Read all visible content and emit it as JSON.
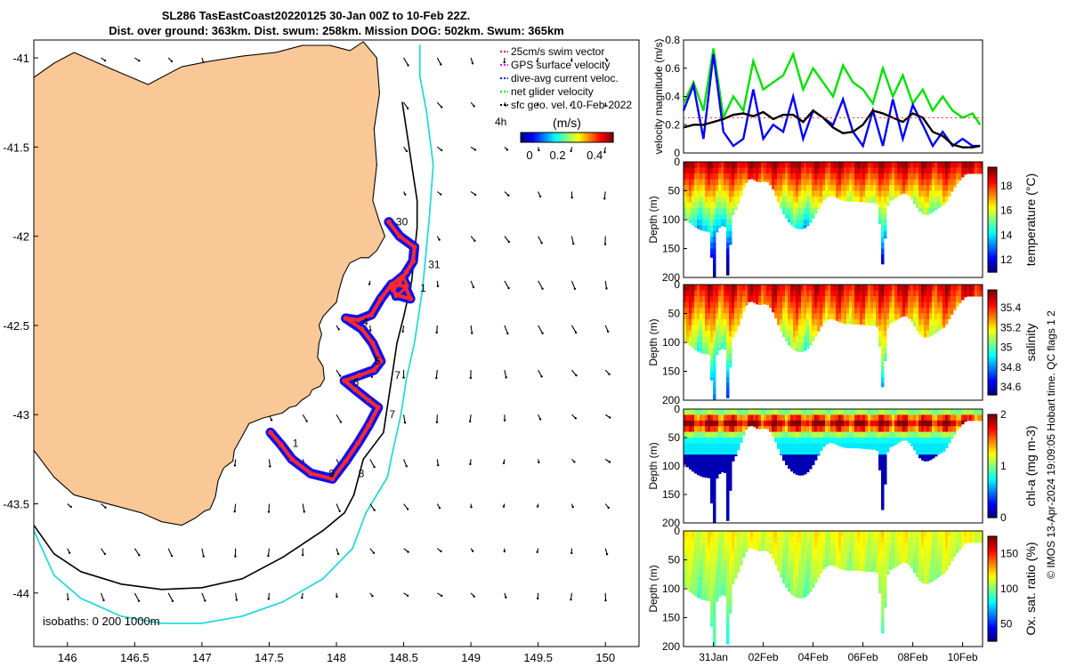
{
  "title": {
    "line1": "SL286 TasEastCoast20220125 30-Jan 00Z to 10-Feb 22Z.",
    "line2": "Dist. over ground: 363km. Dist. swum: 258km. Mission DOG: 502km. Swum: 365km"
  },
  "credit": "© IMOS 13-Apr-2024 19:09:05 Hobart time. QC flags 1  2",
  "colors": {
    "land": "#F9C896",
    "track": "#ff2a2a",
    "dive_avg": "#1010ee",
    "net": "#1ee51e",
    "geo": "#000000",
    "isobath200": "#000000",
    "isobath1000": "#2ad8d8"
  },
  "chart_data": [
    {
      "type": "map",
      "name": "track-map",
      "xlim": [
        145.75,
        150.25
      ],
      "ylim": [
        -44.3,
        -40.9
      ],
      "xticks": [
        146,
        146.5,
        147,
        147.5,
        148,
        148.5,
        149,
        149.5,
        150
      ],
      "xtick_labels": [
        "146",
        "146.5",
        "147",
        "147.5",
        "148",
        "148.5",
        "149",
        "149.5",
        "150"
      ],
      "yticks": [
        -41,
        -41.5,
        -42,
        -42.5,
        -43,
        -43.5,
        -44
      ],
      "ytick_labels": [
        "-41",
        "-41.5",
        "-42",
        "-42.5",
        "-43",
        "-43.5",
        "-44"
      ],
      "legend": {
        "placement": "top-right",
        "entries": [
          {
            "label": "25cm/s swim vector",
            "color": "#ff0000"
          },
          {
            "label": "GPS surface velocity",
            "color": "#ff00ff"
          },
          {
            "label": "dive-avg current veloc.",
            "color": "#0000ff"
          },
          {
            "label": "net glider velocity",
            "color": "#00e000"
          },
          {
            "label": "sfc geo. vel. 10-Feb-2022",
            "color": "#000000"
          }
        ]
      },
      "colorbar": {
        "label": "(m/s)",
        "note": "4h",
        "ticks": [
          0,
          0.2,
          0.4
        ],
        "tick_labels": [
          "0",
          "0.2",
          "0.4"
        ]
      },
      "isobath_label": "isobaths: 0   200  1000m",
      "track_labels": [
        {
          "text": "30",
          "lon": 148.39,
          "lat": -41.92
        },
        {
          "text": "31",
          "lon": 148.63,
          "lat": -42.16
        },
        {
          "text": "1",
          "lon": 148.57,
          "lat": -42.29
        },
        {
          "text": "4",
          "lon": 148.14,
          "lat": -42.48
        },
        {
          "text": "5",
          "lon": 148.23,
          "lat": -42.7
        },
        {
          "text": "6",
          "lon": 148.07,
          "lat": -42.82
        },
        {
          "text": "7",
          "lon": 148.38,
          "lat": -42.78
        },
        {
          "text": "7",
          "lon": 148.34,
          "lat": -43.0
        },
        {
          "text": "1",
          "lon": 147.62,
          "lat": -43.16
        },
        {
          "text": "9",
          "lon": 147.89,
          "lat": -43.33
        },
        {
          "text": "8",
          "lon": 148.11,
          "lat": -43.33
        }
      ],
      "track": [
        [
          148.39,
          -41.92
        ],
        [
          148.47,
          -42.0
        ],
        [
          148.58,
          -42.06
        ],
        [
          148.57,
          -42.14
        ],
        [
          148.52,
          -42.2
        ],
        [
          148.47,
          -42.26
        ],
        [
          148.42,
          -42.3
        ],
        [
          148.45,
          -42.33
        ],
        [
          148.55,
          -42.35
        ],
        [
          148.51,
          -42.28
        ],
        [
          148.41,
          -42.27
        ],
        [
          148.33,
          -42.35
        ],
        [
          148.26,
          -42.44
        ],
        [
          148.16,
          -42.47
        ],
        [
          148.07,
          -42.46
        ],
        [
          148.19,
          -42.52
        ],
        [
          148.27,
          -42.6
        ],
        [
          148.33,
          -42.7
        ],
        [
          148.28,
          -42.75
        ],
        [
          148.17,
          -42.78
        ],
        [
          148.06,
          -42.81
        ],
        [
          148.14,
          -42.86
        ],
        [
          148.24,
          -42.92
        ],
        [
          148.31,
          -42.96
        ],
        [
          148.24,
          -43.06
        ],
        [
          148.16,
          -43.16
        ],
        [
          148.07,
          -43.26
        ],
        [
          147.97,
          -43.36
        ],
        [
          147.81,
          -43.33
        ],
        [
          147.67,
          -43.25
        ],
        [
          147.59,
          -43.17
        ],
        [
          147.51,
          -43.1
        ]
      ],
      "track_extras": [
        [
          [
            148.41,
            -42.27
          ],
          [
            148.49,
            -42.22
          ],
          [
            148.53,
            -42.28
          ],
          [
            148.44,
            -42.34
          ],
          [
            148.41,
            -42.27
          ]
        ]
      ],
      "coast": [
        [
          145.75,
          -41.11
        ],
        [
          145.9,
          -41.03
        ],
        [
          146.05,
          -40.97
        ],
        [
          146.35,
          -41.07
        ],
        [
          146.6,
          -41.15
        ],
        [
          146.85,
          -41.05
        ],
        [
          147.05,
          -41.02
        ],
        [
          147.3,
          -40.99
        ],
        [
          147.55,
          -40.97
        ],
        [
          147.75,
          -40.93
        ],
        [
          147.95,
          -40.93
        ],
        [
          148.1,
          -40.96
        ],
        [
          148.2,
          -40.91
        ],
        [
          148.3,
          -41.0
        ],
        [
          148.32,
          -41.2
        ],
        [
          148.28,
          -41.4
        ],
        [
          148.3,
          -41.6
        ],
        [
          148.27,
          -41.8
        ],
        [
          148.32,
          -41.92
        ],
        [
          148.36,
          -42.0
        ],
        [
          148.3,
          -42.08
        ],
        [
          148.24,
          -42.12
        ],
        [
          148.18,
          -42.12
        ],
        [
          148.1,
          -42.15
        ],
        [
          148.05,
          -42.22
        ],
        [
          148.02,
          -42.3
        ],
        [
          148.0,
          -42.37
        ],
        [
          147.96,
          -42.4
        ],
        [
          147.9,
          -42.45
        ],
        [
          147.87,
          -42.5
        ],
        [
          147.89,
          -42.55
        ],
        [
          147.87,
          -42.6
        ],
        [
          147.86,
          -42.68
        ],
        [
          147.9,
          -42.73
        ],
        [
          147.91,
          -42.8
        ],
        [
          147.88,
          -42.84
        ],
        [
          147.82,
          -42.86
        ],
        [
          147.8,
          -42.89
        ],
        [
          147.74,
          -42.92
        ],
        [
          147.7,
          -42.95
        ],
        [
          147.65,
          -42.96
        ],
        [
          147.6,
          -42.99
        ],
        [
          147.45,
          -43.02
        ],
        [
          147.35,
          -43.05
        ],
        [
          147.3,
          -43.12
        ],
        [
          147.24,
          -43.2
        ],
        [
          147.23,
          -43.26
        ],
        [
          147.16,
          -43.3
        ],
        [
          147.12,
          -43.37
        ],
        [
          147.1,
          -43.46
        ],
        [
          147.06,
          -43.53
        ],
        [
          147.02,
          -43.54
        ],
        [
          146.95,
          -43.58
        ],
        [
          146.85,
          -43.62
        ],
        [
          146.7,
          -43.6
        ],
        [
          146.55,
          -43.55
        ],
        [
          146.4,
          -43.52
        ],
        [
          146.25,
          -43.49
        ],
        [
          146.05,
          -43.45
        ],
        [
          145.9,
          -43.35
        ],
        [
          145.75,
          -43.2
        ]
      ],
      "isobath200": [
        [
          148.49,
          -41.25
        ],
        [
          148.53,
          -41.45
        ],
        [
          148.57,
          -41.65
        ],
        [
          148.6,
          -41.8
        ],
        [
          148.6,
          -41.95
        ],
        [
          148.58,
          -42.1
        ],
        [
          148.56,
          -42.25
        ],
        [
          148.5,
          -42.45
        ],
        [
          148.45,
          -42.6
        ],
        [
          148.42,
          -42.75
        ],
        [
          148.38,
          -42.95
        ],
        [
          148.35,
          -43.1
        ],
        [
          148.2,
          -43.25
        ],
        [
          148.13,
          -43.45
        ],
        [
          148.06,
          -43.55
        ],
        [
          147.9,
          -43.65
        ],
        [
          147.6,
          -43.8
        ],
        [
          147.3,
          -43.92
        ],
        [
          147.0,
          -43.97
        ],
        [
          146.7,
          -43.98
        ],
        [
          146.4,
          -43.95
        ],
        [
          146.1,
          -43.88
        ],
        [
          145.9,
          -43.78
        ],
        [
          145.75,
          -43.62
        ]
      ],
      "isobath1000": [
        [
          148.62,
          -40.93
        ],
        [
          148.62,
          -41.1
        ],
        [
          148.67,
          -41.3
        ],
        [
          148.72,
          -41.6
        ],
        [
          148.69,
          -41.9
        ],
        [
          148.64,
          -42.3
        ],
        [
          148.58,
          -42.6
        ],
        [
          148.52,
          -42.8
        ],
        [
          148.48,
          -43.0
        ],
        [
          148.42,
          -43.2
        ],
        [
          148.38,
          -43.35
        ],
        [
          148.22,
          -43.55
        ],
        [
          148.12,
          -43.75
        ],
        [
          147.9,
          -43.92
        ],
        [
          147.6,
          -44.05
        ],
        [
          147.3,
          -44.13
        ],
        [
          147.0,
          -44.17
        ],
        [
          146.7,
          -44.17
        ],
        [
          146.4,
          -44.13
        ],
        [
          146.1,
          -44.03
        ],
        [
          145.9,
          -43.9
        ],
        [
          145.75,
          -43.65
        ]
      ]
    },
    {
      "type": "line",
      "name": "velocity-panel",
      "ylabel": "velocity magnitude (m/s)",
      "ylim": [
        0,
        0.8
      ],
      "yticks": [
        0,
        0.2,
        0.4,
        0.6,
        0.8
      ],
      "ytick_labels": [
        "0",
        "0.2",
        "0.4",
        "0.6",
        "0.8"
      ],
      "x_days": [
        0,
        0.4,
        0.8,
        1.2,
        1.6,
        2.0,
        2.4,
        2.8,
        3.2,
        3.6,
        4.0,
        4.4,
        4.8,
        5.2,
        5.6,
        6.0,
        6.4,
        6.8,
        7.2,
        7.6,
        8.0,
        8.4,
        8.8,
        9.2,
        9.6,
        10.0,
        10.4,
        10.8,
        11.2,
        11.6,
        11.9
      ],
      "series": [
        {
          "color": "#00e000",
          "values": [
            0.35,
            0.5,
            0.3,
            0.74,
            0.25,
            0.4,
            0.3,
            0.65,
            0.45,
            0.5,
            0.55,
            0.7,
            0.45,
            0.6,
            0.5,
            0.4,
            0.62,
            0.5,
            0.45,
            0.35,
            0.6,
            0.4,
            0.55,
            0.35,
            0.45,
            0.3,
            0.4,
            0.3,
            0.25,
            0.28,
            0.2
          ]
        },
        {
          "color": "#0000ff",
          "values": [
            0.3,
            0.48,
            0.1,
            0.7,
            0.15,
            0.05,
            0.1,
            0.45,
            0.1,
            0.2,
            0.15,
            0.4,
            0.1,
            0.3,
            0.25,
            0.2,
            0.38,
            0.15,
            0.05,
            0.3,
            0.05,
            0.38,
            0.1,
            0.34,
            0.2,
            0.05,
            0.15,
            0.05,
            0.1,
            0.05,
            0.05
          ]
        },
        {
          "color": "#000000",
          "values": [
            0.18,
            0.2,
            0.2,
            0.22,
            0.24,
            0.27,
            0.28,
            0.26,
            0.29,
            0.24,
            0.27,
            0.27,
            0.22,
            0.3,
            0.25,
            0.18,
            0.14,
            0.15,
            0.2,
            0.3,
            0.28,
            0.25,
            0.22,
            0.28,
            0.25,
            0.15,
            0.12,
            0.06,
            0.04,
            0.04,
            0.05
          ]
        }
      ]
    },
    {
      "type": "heatmap",
      "name": "temperature-section",
      "ylabel": "Depth (m)",
      "yticks": [
        0,
        50,
        100,
        150,
        200
      ],
      "ytick_labels": [
        "0",
        "50",
        "100",
        "150",
        "200"
      ],
      "colorbar_label": "temperature (°C)",
      "colorbar_ticks": [
        "18",
        "16",
        "14",
        "12"
      ],
      "colorbar_range": [
        11,
        19.5
      ]
    },
    {
      "type": "heatmap",
      "name": "salinity-section",
      "ylabel": "Depth (m)",
      "yticks": [
        0,
        50,
        100,
        150,
        200
      ],
      "ytick_labels": [
        "0",
        "50",
        "100",
        "150",
        "200"
      ],
      "colorbar_label": "salinity",
      "colorbar_ticks": [
        "35.4",
        "35.2",
        "35",
        "34.8",
        "34.6"
      ],
      "colorbar_range": [
        34.52,
        35.58
      ]
    },
    {
      "type": "heatmap",
      "name": "chla-section",
      "ylabel": "Depth (m)",
      "yticks": [
        0,
        50,
        100,
        150,
        200
      ],
      "ytick_labels": [
        "0",
        "50",
        "100",
        "150",
        "200"
      ],
      "colorbar_label": "chl-a (mg m-3)",
      "colorbar_ticks": [
        "2",
        "1",
        "0"
      ],
      "colorbar_range": [
        0,
        2
      ]
    },
    {
      "type": "heatmap",
      "name": "oxygen-section",
      "ylabel": "Depth (m)",
      "yticks": [
        0,
        50,
        100,
        150,
        200
      ],
      "ytick_labels": [
        "0",
        "50",
        "100",
        "150",
        "200"
      ],
      "colorbar_label": "Ox. sat. ratio (%)",
      "colorbar_ticks": [
        "150",
        "100",
        "50"
      ],
      "colorbar_range": [
        25,
        175
      ],
      "x_tick_labels": [
        "31Jan",
        "02Feb",
        "04Feb",
        "06Feb",
        "08Feb",
        "10Feb"
      ]
    }
  ]
}
